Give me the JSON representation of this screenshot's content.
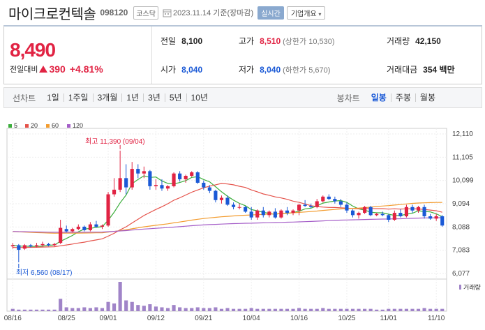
{
  "header": {
    "name": "마이크로컨텍솔",
    "code": "098120",
    "market": "코스닥",
    "date": "2023.11.14 기준(장마감)",
    "realtime": "실시간",
    "company_info": "기업개요"
  },
  "summary": {
    "price": "8,490",
    "change_label": "전일대비",
    "change_amount": "390",
    "change_pct": "+4.81%",
    "prev_label": "전일",
    "prev_val": "8,100",
    "high_label": "고가",
    "high_val": "8,510",
    "high_sub": "(상한가 10,530)",
    "volume_label": "거래량",
    "volume_val": "42,150",
    "open_label": "시가",
    "open_val": "8,040",
    "low_label": "저가",
    "low_val": "8,040",
    "low_sub": "(하한가 5,670)",
    "amount_label": "거래대금",
    "amount_val": "354 백만"
  },
  "period": {
    "line_label": "선차트",
    "line_items": [
      "1일",
      "1주일",
      "3개월",
      "1년",
      "3년",
      "5년",
      "10년"
    ],
    "candle_label": "봉차트",
    "candle_items": [
      "일봉",
      "주봉",
      "월봉"
    ],
    "active_candle": "일봉"
  },
  "chart_data": {
    "type": "candlestick",
    "legend": [
      {
        "name": "5",
        "color": "#3cae3c"
      },
      {
        "name": "20",
        "color": "#e5524a"
      },
      {
        "name": "60",
        "color": "#f39c2f"
      },
      {
        "name": "120",
        "color": "#a55ec8"
      }
    ],
    "y_ticks": [
      12110,
      11105,
      10099,
      9094,
      8088,
      7083,
      6077
    ],
    "ylim": [
      6077,
      12110
    ],
    "x_labels": [
      "08/16",
      "08/25",
      "09/01",
      "09/12",
      "09/21",
      "10/04",
      "10/16",
      "10/25",
      "11/01",
      "11/10"
    ],
    "max_annotation": "최고 11,390 (09/04)",
    "min_annotation": "최저 6,560 (08/17)",
    "volume_legend": "거래량",
    "candles": [
      [
        7250,
        7400,
        7150,
        7300
      ],
      [
        7300,
        7350,
        6560,
        7100
      ],
      [
        7150,
        7350,
        7100,
        7300
      ],
      [
        7300,
        7350,
        7200,
        7250
      ],
      [
        7250,
        7400,
        7200,
        7300
      ],
      [
        7300,
        7450,
        7250,
        7350
      ],
      [
        7350,
        7400,
        7250,
        7300
      ],
      [
        7300,
        7400,
        7250,
        7350
      ],
      [
        7400,
        8400,
        7350,
        8050
      ],
      [
        8000,
        8150,
        7850,
        7900
      ],
      [
        7900,
        8050,
        7850,
        8000
      ],
      [
        8000,
        8200,
        7950,
        8100
      ],
      [
        8100,
        8150,
        7900,
        7950
      ],
      [
        7950,
        8300,
        7900,
        8200
      ],
      [
        8200,
        8350,
        8050,
        8100
      ],
      [
        8100,
        8200,
        8000,
        8150
      ],
      [
        8150,
        9600,
        8100,
        9500
      ],
      [
        9500,
        10200,
        9400,
        9700
      ],
      [
        9700,
        11390,
        9600,
        10200
      ],
      [
        10200,
        10800,
        9500,
        9800
      ],
      [
        9800,
        10900,
        9700,
        10600
      ],
      [
        10600,
        10800,
        10200,
        10400
      ],
      [
        10400,
        10700,
        10200,
        10500
      ],
      [
        10500,
        10550,
        9700,
        9850
      ],
      [
        9850,
        10150,
        9700,
        9900
      ],
      [
        9900,
        10150,
        9650,
        9750
      ],
      [
        9750,
        9900,
        9650,
        9850
      ],
      [
        9850,
        10450,
        9800,
        10400
      ],
      [
        10400,
        10500,
        10050,
        10150
      ],
      [
        10150,
        10350,
        10000,
        10300
      ],
      [
        10300,
        10500,
        10250,
        10450
      ],
      [
        10450,
        10500,
        9950,
        10000
      ],
      [
        10000,
        10100,
        9700,
        9800
      ],
      [
        9800,
        9900,
        9550,
        9650
      ],
      [
        9650,
        9700,
        9150,
        9250
      ],
      [
        9250,
        9450,
        9100,
        9350
      ],
      [
        9350,
        9450,
        9000,
        9050
      ],
      [
        9050,
        9150,
        8850,
        8950
      ],
      [
        8950,
        9100,
        8850,
        8950
      ],
      [
        8950,
        9000,
        8700,
        8750
      ],
      [
        8750,
        8950,
        8400,
        8500
      ],
      [
        8500,
        8850,
        8400,
        8800
      ],
      [
        8800,
        8950,
        8500,
        8600
      ],
      [
        8600,
        8800,
        8500,
        8750
      ],
      [
        8750,
        8900,
        8450,
        8500
      ],
      [
        8500,
        8850,
        8450,
        8800
      ],
      [
        8800,
        8950,
        8600,
        8700
      ],
      [
        8700,
        8850,
        8600,
        8800
      ],
      [
        8800,
        9100,
        8600,
        9050
      ],
      [
        9050,
        9250,
        8950,
        9000
      ],
      [
        9000,
        9100,
        8900,
        8950
      ],
      [
        8950,
        9300,
        8900,
        9200
      ],
      [
        9200,
        9450,
        9150,
        9400
      ],
      [
        9400,
        9500,
        9250,
        9300
      ],
      [
        9300,
        9400,
        9100,
        9200
      ],
      [
        9200,
        9300,
        8950,
        9050
      ],
      [
        9050,
        9150,
        8700,
        8800
      ],
      [
        8800,
        8850,
        8500,
        8600
      ],
      [
        8600,
        8750,
        8450,
        8700
      ],
      [
        8700,
        9000,
        8650,
        8950
      ],
      [
        8950,
        9000,
        8550,
        8600
      ],
      [
        8600,
        8700,
        8550,
        8650
      ],
      [
        8650,
        8750,
        8550,
        8600
      ],
      [
        8600,
        8650,
        8300,
        8400
      ],
      [
        8400,
        8800,
        8350,
        8700
      ],
      [
        8700,
        8850,
        8500,
        8550
      ],
      [
        8550,
        9050,
        8500,
        8950
      ],
      [
        8950,
        9050,
        8700,
        8800
      ],
      [
        8800,
        9000,
        8700,
        8950
      ],
      [
        8950,
        9050,
        8450,
        8550
      ],
      [
        8550,
        8650,
        8400,
        8450
      ],
      [
        8450,
        8650,
        8350,
        8550
      ],
      [
        8550,
        8600,
        8100,
        8150
      ]
    ],
    "volume": [
      3,
      2,
      2,
      2,
      2,
      2,
      2,
      2,
      16,
      5,
      4,
      4,
      5,
      4,
      5,
      4,
      12,
      10,
      38,
      14,
      12,
      8,
      7,
      9,
      6,
      5,
      4,
      8,
      5,
      4,
      4,
      5,
      4,
      4,
      5,
      3,
      4,
      3,
      3,
      3,
      4,
      3,
      3,
      3,
      3,
      3,
      3,
      3,
      4,
      3,
      3,
      3,
      4,
      3,
      3,
      3,
      3,
      3,
      3,
      3,
      3,
      2,
      2,
      3,
      3,
      3,
      3,
      3,
      3,
      4,
      3,
      3,
      3
    ]
  }
}
